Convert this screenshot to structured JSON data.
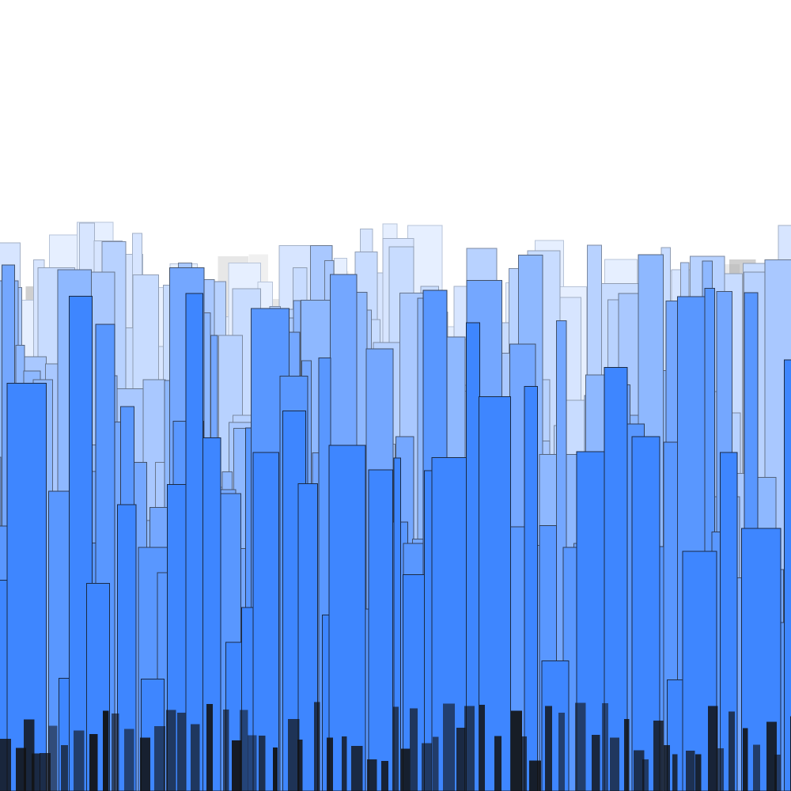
{
  "scene": {
    "description_free": true,
    "background_color": "#ffffff",
    "building_color_far": "#e6efff",
    "building_color_mid": "#a9c8ff",
    "building_color_near": "#3e86ff",
    "outline_color_far": "#b8c4d8",
    "outline_color_near": "#1a2a44",
    "haze_color": "#9a9a9a",
    "ground_shadow_color": "#111111",
    "layer_count": 9,
    "seed": 7
  }
}
